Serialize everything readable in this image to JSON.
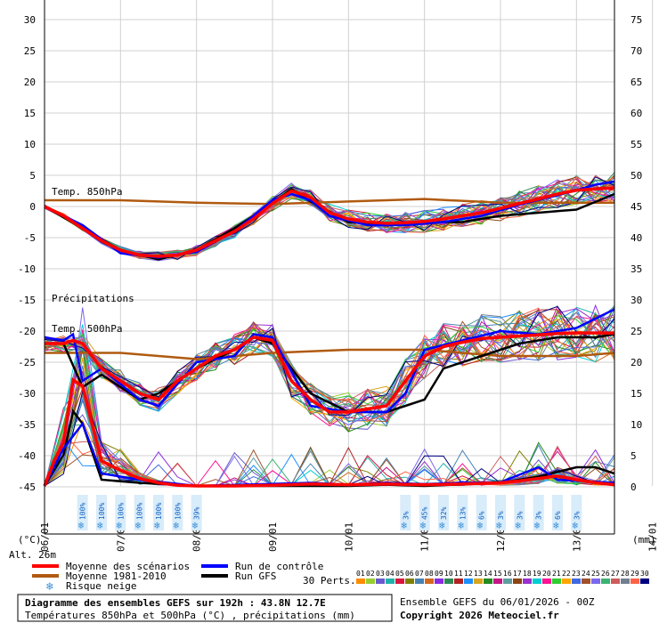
{
  "chart_data": {
    "type": "line",
    "x_dates": [
      "07/01",
      "08/01",
      "09/01",
      "10/01",
      "11/01",
      "12/01",
      "13/01",
      "14/01"
    ],
    "first_date_label": "06/01",
    "x_unit": "(mm)",
    "y_left_unit": "(°C)",
    "left_ticks": [
      30,
      25,
      20,
      15,
      10,
      5,
      0,
      -5,
      -10,
      -15,
      -20,
      -25,
      -30,
      -35,
      -40,
      -45
    ],
    "right_ticks": [
      75,
      70,
      65,
      60,
      55,
      50,
      45,
      40,
      35,
      30,
      25,
      20,
      15,
      10,
      5,
      0
    ],
    "t850_label": "Temp. 850hPa",
    "t500_label": "Temp. 500hPa",
    "precip_label": "Précipitations",
    "altitude": "Alt. 26m",
    "series": [
      {
        "name": "Moyenne des scénarios",
        "color": "#ff0000",
        "t850": [
          [
            0,
            0
          ],
          [
            6,
            -1.5
          ],
          [
            12,
            -3.5
          ],
          [
            18,
            -5.5
          ],
          [
            24,
            -7
          ],
          [
            30,
            -7.8
          ],
          [
            36,
            -8
          ],
          [
            42,
            -7.8
          ],
          [
            48,
            -7
          ],
          [
            54,
            -5.5
          ],
          [
            60,
            -4
          ],
          [
            66,
            -2
          ],
          [
            72,
            0.5
          ],
          [
            78,
            2.5
          ],
          [
            84,
            1.5
          ],
          [
            90,
            -1
          ],
          [
            96,
            -2
          ],
          [
            102,
            -2.5
          ],
          [
            108,
            -2.7
          ],
          [
            114,
            -2.6
          ],
          [
            120,
            -2.4
          ],
          [
            126,
            -2
          ],
          [
            132,
            -1.5
          ],
          [
            138,
            -1
          ],
          [
            144,
            -0.3
          ],
          [
            150,
            0.5
          ],
          [
            156,
            1.2
          ],
          [
            162,
            2
          ],
          [
            168,
            2.6
          ],
          [
            174,
            2.8
          ],
          [
            180,
            3
          ]
        ],
        "t500": [
          [
            0,
            -22
          ],
          [
            6,
            -22
          ],
          [
            9,
            -21.5
          ],
          [
            12,
            -22
          ],
          [
            18,
            -26
          ],
          [
            24,
            -28
          ],
          [
            30,
            -30
          ],
          [
            36,
            -31
          ],
          [
            42,
            -28
          ],
          [
            48,
            -26
          ],
          [
            54,
            -24
          ],
          [
            60,
            -23
          ],
          [
            66,
            -21
          ],
          [
            72,
            -21.5
          ],
          [
            78,
            -28
          ],
          [
            84,
            -31
          ],
          [
            90,
            -33
          ],
          [
            96,
            -33
          ],
          [
            102,
            -32.5
          ],
          [
            108,
            -32
          ],
          [
            114,
            -28
          ],
          [
            120,
            -24
          ],
          [
            126,
            -22.5
          ],
          [
            132,
            -21.8
          ],
          [
            138,
            -21.2
          ],
          [
            144,
            -21
          ],
          [
            150,
            -20.8
          ],
          [
            156,
            -20.6
          ],
          [
            162,
            -20.4
          ],
          [
            168,
            -20.3
          ],
          [
            174,
            -20.3
          ],
          [
            180,
            -20.3
          ]
        ],
        "precip": [
          [
            0,
            0
          ],
          [
            3,
            4
          ],
          [
            6,
            7
          ],
          [
            9,
            17
          ],
          [
            12,
            16
          ],
          [
            18,
            4
          ],
          [
            24,
            2.5
          ],
          [
            30,
            1.2
          ],
          [
            36,
            0.5
          ],
          [
            42,
            0.1
          ],
          [
            48,
            0
          ],
          [
            60,
            0
          ],
          [
            72,
            0.1
          ],
          [
            84,
            0.3
          ],
          [
            96,
            0.2
          ],
          [
            108,
            0.3
          ],
          [
            120,
            0.2
          ],
          [
            132,
            0.3
          ],
          [
            144,
            0.5
          ],
          [
            150,
            0.8
          ],
          [
            156,
            1.2
          ],
          [
            162,
            1.6
          ],
          [
            168,
            1.0
          ],
          [
            174,
            0.5
          ],
          [
            180,
            0.2
          ]
        ]
      },
      {
        "name": "Run de contrôle",
        "color": "#0000ff",
        "t850": [
          [
            0,
            0
          ],
          [
            12,
            -3
          ],
          [
            24,
            -7.5
          ],
          [
            36,
            -8.2
          ],
          [
            48,
            -7.3
          ],
          [
            60,
            -4
          ],
          [
            72,
            1
          ],
          [
            78,
            2
          ],
          [
            84,
            1
          ],
          [
            90,
            -1.5
          ],
          [
            102,
            -3
          ],
          [
            114,
            -3
          ],
          [
            126,
            -2.5
          ],
          [
            138,
            -1.5
          ],
          [
            150,
            0.3
          ],
          [
            162,
            1.8
          ],
          [
            174,
            3.5
          ],
          [
            180,
            4
          ]
        ],
        "t500": [
          [
            0,
            -21
          ],
          [
            6,
            -21.5
          ],
          [
            9,
            -20.5
          ],
          [
            12,
            -28
          ],
          [
            18,
            -26
          ],
          [
            30,
            -31
          ],
          [
            36,
            -32
          ],
          [
            48,
            -25
          ],
          [
            60,
            -24
          ],
          [
            66,
            -20.5
          ],
          [
            72,
            -21
          ],
          [
            84,
            -32
          ],
          [
            96,
            -33
          ],
          [
            108,
            -33
          ],
          [
            114,
            -30
          ],
          [
            120,
            -23
          ],
          [
            132,
            -21.5
          ],
          [
            144,
            -20
          ],
          [
            156,
            -20.5
          ],
          [
            168,
            -19.5
          ],
          [
            180,
            -16.5
          ]
        ],
        "precip": [
          [
            0,
            0
          ],
          [
            6,
            6
          ],
          [
            9,
            8
          ],
          [
            12,
            10
          ],
          [
            18,
            2
          ],
          [
            30,
            1
          ],
          [
            48,
            0
          ],
          [
            84,
            0.5
          ],
          [
            96,
            0.2
          ],
          [
            108,
            0.5
          ],
          [
            120,
            0.3
          ],
          [
            132,
            0.5
          ],
          [
            144,
            0.6
          ],
          [
            156,
            3
          ],
          [
            162,
            1
          ],
          [
            180,
            0.5
          ]
        ]
      },
      {
        "name": "Run GFS",
        "color": "#000000",
        "t850": [
          [
            0,
            0
          ],
          [
            12,
            -3.5
          ],
          [
            24,
            -7
          ],
          [
            36,
            -8.5
          ],
          [
            48,
            -7
          ],
          [
            60,
            -3.5
          ],
          [
            72,
            0.5
          ],
          [
            78,
            2.8
          ],
          [
            84,
            0.8
          ],
          [
            96,
            -2.5
          ],
          [
            108,
            -3
          ],
          [
            120,
            -2.5
          ],
          [
            132,
            -2.5
          ],
          [
            144,
            -1.5
          ],
          [
            156,
            -1
          ],
          [
            168,
            -0.5
          ],
          [
            180,
            2
          ]
        ],
        "t500": [
          [
            0,
            -22
          ],
          [
            6,
            -22
          ],
          [
            12,
            -29
          ],
          [
            18,
            -27
          ],
          [
            30,
            -31
          ],
          [
            36,
            -30
          ],
          [
            48,
            -26
          ],
          [
            60,
            -23
          ],
          [
            66,
            -21
          ],
          [
            72,
            -22
          ],
          [
            84,
            -30
          ],
          [
            96,
            -33
          ],
          [
            108,
            -33
          ],
          [
            114,
            -32
          ],
          [
            120,
            -31
          ],
          [
            126,
            -26
          ],
          [
            138,
            -24
          ],
          [
            150,
            -22
          ],
          [
            162,
            -21
          ],
          [
            174,
            -21
          ],
          [
            180,
            -20.5
          ]
        ],
        "precip": [
          [
            0,
            0
          ],
          [
            6,
            5
          ],
          [
            9,
            12
          ],
          [
            12,
            10
          ],
          [
            18,
            1
          ],
          [
            30,
            0.5
          ],
          [
            48,
            0
          ],
          [
            96,
            0
          ],
          [
            108,
            0.2
          ],
          [
            120,
            0
          ],
          [
            144,
            0.5
          ],
          [
            156,
            1.5
          ],
          [
            168,
            3
          ],
          [
            174,
            3
          ],
          [
            180,
            2
          ]
        ]
      },
      {
        "name": "Moyenne 1981-2010",
        "color": "#b05a10",
        "t850": [
          [
            0,
            1
          ],
          [
            24,
            1
          ],
          [
            48,
            0.6
          ],
          [
            72,
            0.4
          ],
          [
            96,
            0.8
          ],
          [
            120,
            1.2
          ],
          [
            144,
            0.6
          ],
          [
            168,
            0.6
          ],
          [
            180,
            0.6
          ]
        ],
        "t500": [
          [
            0,
            -23.5
          ],
          [
            24,
            -23.5
          ],
          [
            48,
            -24.5
          ],
          [
            72,
            -23.5
          ],
          [
            96,
            -23
          ],
          [
            120,
            -23
          ],
          [
            144,
            -24
          ],
          [
            168,
            -24
          ],
          [
            180,
            -23.5
          ]
        ]
      }
    ],
    "snow_risk": [
      {
        "x": 12,
        "pct": "100%"
      },
      {
        "x": 18,
        "pct": "100%"
      },
      {
        "x": 24,
        "pct": "100%"
      },
      {
        "x": 30,
        "pct": "100%"
      },
      {
        "x": 36,
        "pct": "100%"
      },
      {
        "x": 42,
        "pct": "100%"
      },
      {
        "x": 48,
        "pct": "39%"
      },
      {
        "x": 114,
        "pct": "3%"
      },
      {
        "x": 120,
        "pct": "45%"
      },
      {
        "x": 126,
        "pct": "32%"
      },
      {
        "x": 132,
        "pct": "13%"
      },
      {
        "x": 138,
        "pct": "6%"
      },
      {
        "x": 144,
        "pct": "3%"
      },
      {
        "x": 150,
        "pct": "3%"
      },
      {
        "x": 156,
        "pct": "3%"
      },
      {
        "x": 162,
        "pct": "6%"
      },
      {
        "x": 168,
        "pct": "3%"
      }
    ],
    "perturbations": {
      "label": "30 Perts.",
      "numbers": [
        "01",
        "02",
        "03",
        "04",
        "05",
        "06",
        "07",
        "08",
        "09",
        "10",
        "11",
        "12",
        "13",
        "14",
        "15",
        "16",
        "17",
        "18",
        "19",
        "20",
        "21",
        "22",
        "23",
        "24",
        "25",
        "26",
        "27",
        "28",
        "29",
        "30"
      ],
      "colors": [
        "#ff8c00",
        "#9acd32",
        "#6a5acd",
        "#20b2aa",
        "#dc143c",
        "#808000",
        "#4682b4",
        "#d2691e",
        "#8a2be2",
        "#2e8b57",
        "#b22222",
        "#1e90ff",
        "#daa520",
        "#228b22",
        "#c71585",
        "#5f9ea0",
        "#8b4513",
        "#9932cc",
        "#00ced1",
        "#ff1493",
        "#32cd32",
        "#ffa500",
        "#4169e1",
        "#a0522d",
        "#7b68ee",
        "#3cb371",
        "#cd5c5c",
        "#708090",
        "#ff6347",
        "#000080"
      ]
    }
  },
  "legend": {
    "mean": "Moyenne des scénarios",
    "control": "Run de contrôle",
    "climate": "Moyenne 1981-2010",
    "gfs": "Run GFS",
    "snow": "Risque neige"
  },
  "footer": {
    "title": "Diagramme des ensembles GEFS sur 192h : 43.8N 12.7E",
    "subtitle": "Températures 850hPa et 500hPa (°C) , précipitations (mm)",
    "run": "Ensemble GEFS du 06/01/2026 - 00Z",
    "copyright": "Copyright 2026 Meteociel.fr"
  }
}
